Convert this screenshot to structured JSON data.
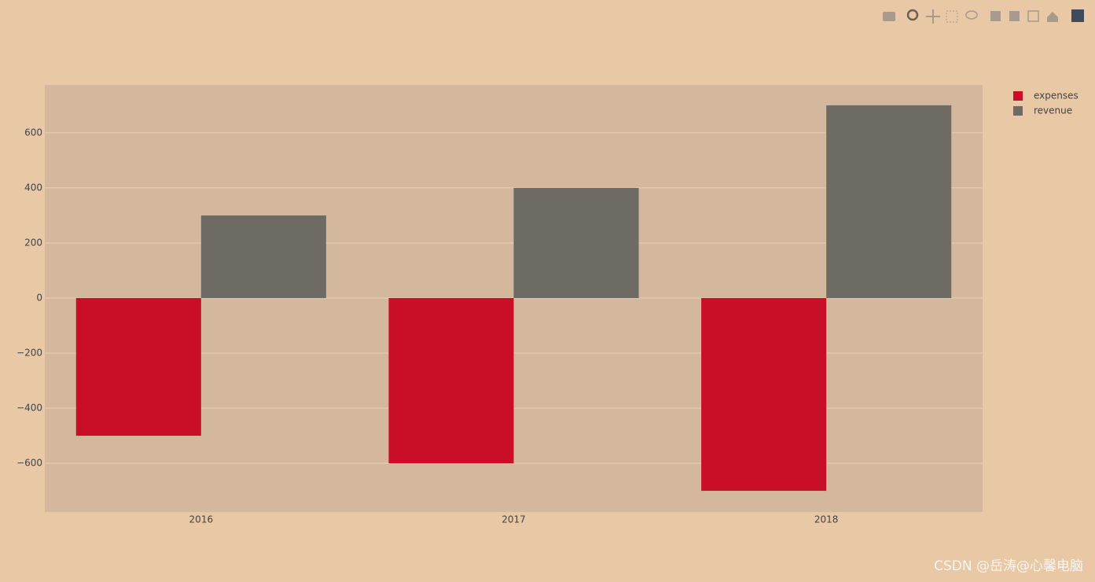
{
  "chart_data": {
    "type": "bar",
    "categories": [
      "2016",
      "2017",
      "2018"
    ],
    "series": [
      {
        "name": "expenses",
        "color": "#c90f28",
        "values": [
          -500,
          -600,
          -700
        ]
      },
      {
        "name": "revenue",
        "color": "#6e6b64",
        "values": [
          300,
          400,
          700
        ]
      }
    ],
    "ylim": [
      -777,
      774
    ],
    "yticks": [
      {
        "value": -600,
        "label": "−600"
      },
      {
        "value": -400,
        "label": "−400"
      },
      {
        "value": -200,
        "label": "−200"
      },
      0,
      200,
      400,
      600
    ],
    "grid": true,
    "legend": "right",
    "watermark": "CSDN @岳涛@心馨电脑"
  }
}
